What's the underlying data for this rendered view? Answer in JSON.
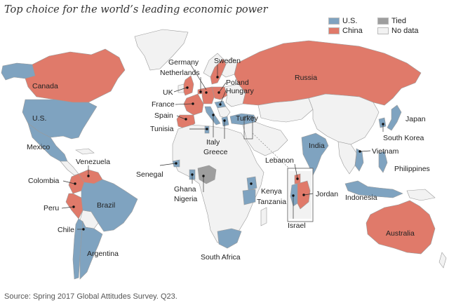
{
  "title": "Top choice for the world’s leading economic power",
  "source": "Source: Spring 2017 Global Attitudes Survey. Q23.",
  "colors": {
    "us": "#7fa3c0",
    "china": "#e07a6a",
    "tied": "#9e9e9e",
    "nodata": "#f2f2f2",
    "border": "#9a9a9a"
  },
  "legend": {
    "us": "U.S.",
    "tied": "Tied",
    "china": "China",
    "nodata": "No data"
  },
  "labels": {
    "canada": "Canada",
    "us": "U.S.",
    "mexico": "Mexico",
    "venezuela": "Venezuela",
    "colombia": "Colombia",
    "peru": "Peru",
    "brazil": "Brazil",
    "chile": "Chile",
    "argentina": "Argentina",
    "germany": "Germany",
    "sweden": "Sweden",
    "netherlands": "Netherlands",
    "poland": "Poland",
    "hungary": "Hungary",
    "uk": "UK",
    "france": "France",
    "spain": "Spain",
    "tunisia": "Tunisia",
    "italy": "Italy",
    "greece": "Greece",
    "turkey": "Turkey",
    "russia": "Russia",
    "japan": "Japan",
    "south_korea": "South Korea",
    "india": "India",
    "vietnam": "Vietnam",
    "philippines": "Philippines",
    "indonesia": "Indonesia",
    "australia": "Australia",
    "senegal": "Senegal",
    "ghana": "Ghana",
    "nigeria": "Nigeria",
    "kenya": "Kenya",
    "tanzania": "Tanzania",
    "south_africa": "South Africa",
    "lebanon": "Lebanon",
    "jordan": "Jordan",
    "israel": "Israel"
  }
}
